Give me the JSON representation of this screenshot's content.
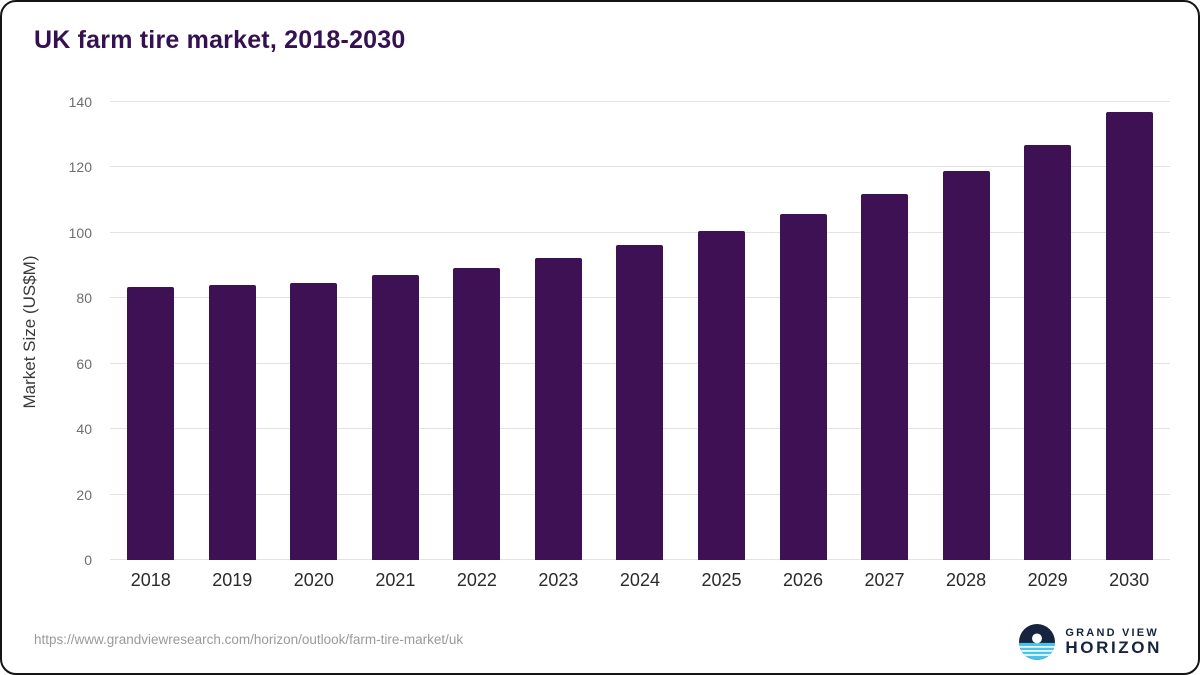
{
  "title": "UK farm tire market, 2018-2030",
  "colors": {
    "bar": "#3d1153",
    "title": "#341252",
    "grid": "#e3e3e3",
    "brand_navy": "#16243f",
    "brand_blue": "#47c4ec"
  },
  "footer": {
    "source_url": "https://www.grandviewresearch.com/horizon/outlook/farm-tire-market/uk",
    "brand_line1": "GRAND VIEW",
    "brand_line2": "HORIZON"
  },
  "chart_data": {
    "type": "bar",
    "title": "UK farm tire market, 2018-2030",
    "categories": [
      "2018",
      "2019",
      "2020",
      "2021",
      "2022",
      "2023",
      "2024",
      "2025",
      "2026",
      "2027",
      "2028",
      "2029",
      "2030"
    ],
    "values": [
      83.5,
      84.1,
      84.6,
      87.2,
      89.4,
      92.4,
      96.3,
      100.6,
      105.9,
      112.0,
      118.9,
      126.9,
      136.9
    ],
    "xlabel": "",
    "ylabel": "Market Size (US$M)",
    "ylim": [
      0,
      140
    ],
    "yticks": [
      0,
      20,
      40,
      60,
      80,
      100,
      120,
      140
    ],
    "grid": true,
    "legend_position": "none"
  }
}
